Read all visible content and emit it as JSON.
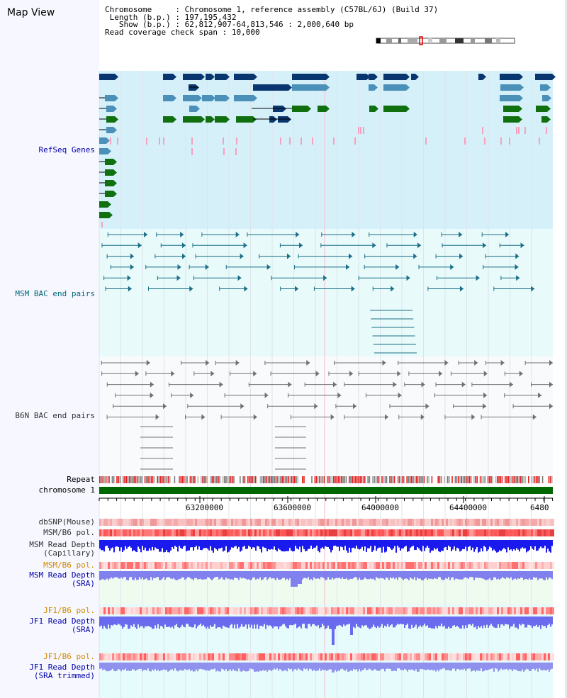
{
  "title": "Map View",
  "info": {
    "chromosome_key": "Chromosome",
    "chromosome_value": "Chromosome 1, reference assembly (C57BL/6J) (Build 37)",
    "length_key": "Length (b.p.)",
    "length_value": "197,195,432",
    "show_key": "Show (b.p.)",
    "show_value": "62,812,907-64,813,546 : 2,000,640 bp",
    "coverage_key": "Read coverage check span",
    "coverage_value": "10,000"
  },
  "tracks": {
    "refseq": "RefSeq Genes",
    "msm_bac": "MSM BAC end pairs",
    "b6n_bac": "B6N BAC end pairs",
    "repeat": "Repeat",
    "chromosome": "chromosome 1",
    "dbsnp": "dbSNP(Mouse)",
    "msm_pol": "MSM/B6 pol.",
    "msm_depth_cap_1": "MSM Read Depth",
    "msm_depth_cap_2": "(Capillary)",
    "msm_pol_sra": "MSM/B6 pol.",
    "msm_depth_sra_1": "MSM Read Depth",
    "msm_depth_sra_2": "(SRA)",
    "jf1_pol": "JF1/B6 pol.",
    "jf1_depth_1": "JF1 Read Depth",
    "jf1_depth_2": "(SRA)",
    "jf1_pol_trim": "JF1/B6 pol.",
    "jf1_depth_trim_1": "JF1 Read Depth",
    "jf1_depth_trim_2": "(SRA trimmed)"
  },
  "ruler": {
    "ticks": [
      "63200000",
      "63600000",
      "64000000",
      "64400000",
      "6480"
    ]
  },
  "colors": {
    "refseq_bg": "#d6f0fa",
    "msm_bg": "#e8fafa",
    "gene_navy": "#0a3670",
    "gene_blue": "#4a90b8",
    "gene_green": "#107010",
    "pink": "#f7a0c0",
    "msm_pair": "#1a6e88",
    "b6n_pair": "#707070",
    "chromosome_bar": "#006600",
    "depth_blue": "#1a1aee",
    "depth_light": "#8080ee"
  }
}
